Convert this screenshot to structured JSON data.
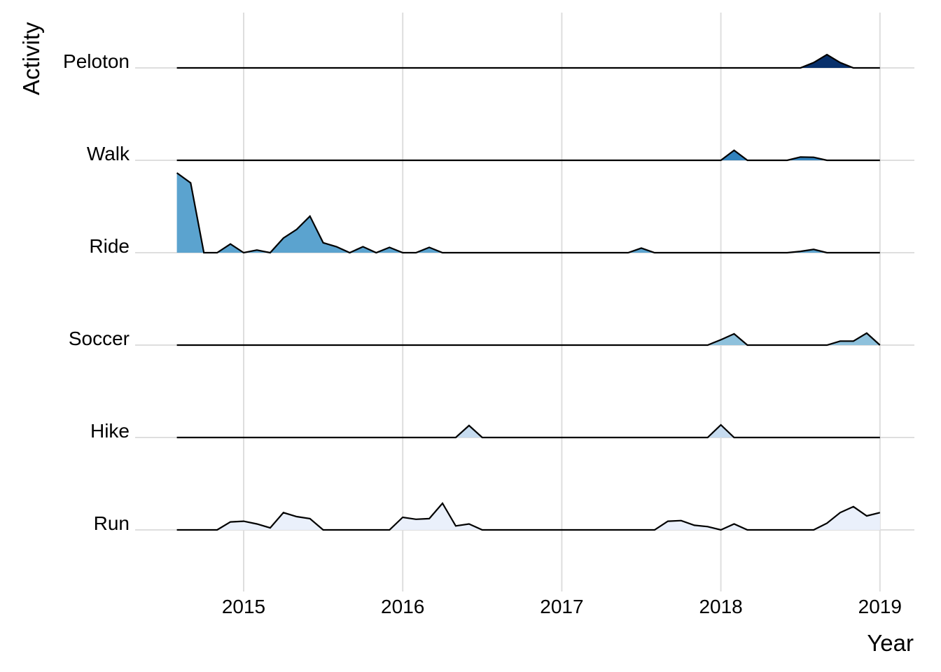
{
  "chart_data": {
    "type": "area",
    "subtype": "ridgeline",
    "title": "",
    "xlabel": "Year",
    "ylabel": "Activity",
    "xlim": [
      2014.58,
      2019.0
    ],
    "x_ticks": [
      "2015",
      "2016",
      "2017",
      "2018",
      "2019"
    ],
    "grid": true,
    "legend": "none",
    "x": [
      2014.58,
      2014.667,
      2014.75,
      2014.833,
      2014.917,
      2015.0,
      2015.083,
      2015.167,
      2015.25,
      2015.333,
      2015.417,
      2015.5,
      2015.583,
      2015.667,
      2015.75,
      2015.833,
      2015.917,
      2016.0,
      2016.083,
      2016.167,
      2016.25,
      2016.333,
      2016.417,
      2016.5,
      2016.583,
      2016.667,
      2016.75,
      2016.833,
      2016.917,
      2017.0,
      2017.083,
      2017.167,
      2017.25,
      2017.333,
      2017.417,
      2017.5,
      2017.583,
      2017.667,
      2017.75,
      2017.833,
      2017.917,
      2018.0,
      2018.083,
      2018.167,
      2018.25,
      2018.333,
      2018.417,
      2018.5,
      2018.583,
      2018.667,
      2018.75,
      2018.833,
      2018.917,
      2019.0
    ],
    "series": [
      {
        "name": "Peloton",
        "color": "#08306b",
        "values": [
          0,
          0,
          0,
          0,
          0,
          0,
          0,
          0,
          0,
          0,
          0,
          0,
          0,
          0,
          0,
          0,
          0,
          0,
          0,
          0,
          0,
          0,
          0,
          0,
          0,
          0,
          0,
          0,
          0,
          0,
          0,
          0,
          0,
          0,
          0,
          0,
          0,
          0,
          0,
          0,
          0,
          0,
          0,
          0,
          0,
          0,
          0,
          0,
          0.08,
          0.2,
          0.08,
          0,
          0,
          0
        ]
      },
      {
        "name": "Walk",
        "color": "#3182bd",
        "values": [
          0,
          0,
          0,
          0,
          0,
          0,
          0,
          0,
          0,
          0,
          0,
          0,
          0,
          0,
          0,
          0,
          0,
          0,
          0,
          0,
          0,
          0,
          0,
          0,
          0,
          0,
          0,
          0,
          0,
          0,
          0,
          0,
          0,
          0,
          0,
          0,
          0,
          0,
          0,
          0,
          0,
          0,
          0.15,
          0,
          0,
          0,
          0,
          0.05,
          0.045,
          0,
          0,
          0,
          0,
          0
        ]
      },
      {
        "name": "Ride",
        "color": "#5ba3cf",
        "values": [
          1.2,
          1.05,
          0,
          0,
          0.13,
          0,
          0.04,
          0,
          0.22,
          0.35,
          0.55,
          0.15,
          0.09,
          0,
          0.09,
          0,
          0.08,
          0,
          0,
          0.08,
          0,
          0,
          0,
          0,
          0,
          0,
          0,
          0,
          0,
          0,
          0,
          0,
          0,
          0,
          0,
          0.07,
          0,
          0,
          0,
          0,
          0,
          0,
          0,
          0,
          0,
          0,
          0,
          0.02,
          0.05,
          0,
          0,
          0,
          0,
          0
        ]
      },
      {
        "name": "Soccer",
        "color": "#8ec1dc",
        "values": [
          0,
          0,
          0,
          0,
          0,
          0,
          0,
          0,
          0,
          0,
          0,
          0,
          0,
          0,
          0,
          0,
          0,
          0,
          0,
          0,
          0,
          0,
          0,
          0,
          0,
          0,
          0,
          0,
          0,
          0,
          0,
          0,
          0,
          0,
          0,
          0,
          0,
          0,
          0,
          0,
          0,
          0.08,
          0.17,
          0,
          0,
          0,
          0,
          0,
          0,
          0,
          0.06,
          0.06,
          0.18,
          0
        ]
      },
      {
        "name": "Hike",
        "color": "#c6dbef",
        "values": [
          0,
          0,
          0,
          0,
          0,
          0,
          0,
          0,
          0,
          0,
          0,
          0,
          0,
          0,
          0,
          0,
          0,
          0,
          0,
          0,
          0,
          0,
          0.18,
          0,
          0,
          0,
          0,
          0,
          0,
          0,
          0,
          0,
          0,
          0,
          0,
          0,
          0,
          0,
          0,
          0,
          0,
          0.19,
          0,
          0,
          0,
          0,
          0,
          0,
          0,
          0,
          0,
          0,
          0,
          0
        ]
      },
      {
        "name": "Run",
        "color": "#eaf0fb",
        "values": [
          0,
          0,
          0,
          0,
          0.12,
          0.13,
          0.09,
          0.03,
          0.26,
          0.2,
          0.17,
          0,
          0,
          0,
          0,
          0,
          0,
          0.19,
          0.16,
          0.17,
          0.4,
          0.06,
          0.09,
          0,
          0,
          0,
          0,
          0,
          0,
          0,
          0,
          0,
          0,
          0,
          0,
          0,
          0,
          0.13,
          0.14,
          0.07,
          0.05,
          0,
          0.09,
          0,
          0,
          0,
          0,
          0,
          0,
          0.1,
          0.26,
          0.35,
          0.21,
          0.26
        ]
      }
    ]
  }
}
